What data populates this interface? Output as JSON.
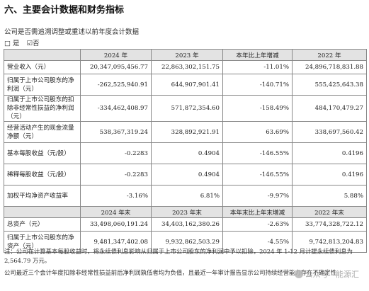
{
  "section_title": "六、主要会计数据和财务指标",
  "subtitle": "公司是否需追溯调整或重述以前年度会计数据",
  "choice": {
    "yes": "是",
    "no": "否",
    "box_empty": "□",
    "box_checked": "☑"
  },
  "header_top": [
    "",
    "2024 年",
    "2023 年",
    "本年比上年增减",
    "2022 年"
  ],
  "rows_top": [
    {
      "label": "营业收入（元）",
      "v2024": "20,347,095,456.77",
      "v2023": "22,863,302,151.75",
      "change": "-11.01%",
      "v2022": "24,896,718,831.88",
      "tall": false
    },
    {
      "label": "归属于上市公司股东的净利润（元）",
      "v2024": "-262,525,940.91",
      "v2023": "644,907,901.41",
      "change": "-140.71%",
      "v2022": "555,425,643.38",
      "tall": true
    },
    {
      "label": "归属于上市公司股东的扣除非经常性损益的净利润（元）",
      "v2024": "-334,462,408.97",
      "v2023": "571,872,354.60",
      "change": "-158.49%",
      "v2022": "484,170,479.27",
      "tall": true
    },
    {
      "label": "经营活动产生的现金流量净额（元）",
      "v2024": "538,367,319.24",
      "v2023": "328,892,921.91",
      "change": "63.69%",
      "v2022": "338,697,560.42",
      "tall": true
    },
    {
      "label": "基本每股收益（元/股）",
      "v2024": "-0.2283",
      "v2023": "0.4904",
      "change": "-146.55%",
      "v2022": "0.4196",
      "tall": true
    },
    {
      "label": "稀释每股收益（元/股）",
      "v2024": "-0.2283",
      "v2023": "0.4904",
      "change": "-146.55%",
      "v2022": "0.4196",
      "tall": true
    },
    {
      "label": "加权平均净资产收益率",
      "v2024": "-3.16%",
      "v2023": "6.81%",
      "change": "-9.97%",
      "v2022": "5.88%",
      "tall": true
    }
  ],
  "header_bottom": [
    "",
    "2024 年末",
    "2023 年末",
    "本年末比上年末增减",
    "2022 年末"
  ],
  "rows_bottom": [
    {
      "label": "总资产（元）",
      "v2024": "33,498,060,191.24",
      "v2023": "34,403,162,380.26",
      "change": "-2.63%",
      "v2022": "33,774,328,722.12",
      "tall": false
    },
    {
      "label": "归属于上市公司股东的净资产（元）",
      "v2024": "9,481,347,402.08",
      "v2023": "9,932,862,503.29",
      "change": "-4.55%",
      "v2022": "9,742,813,204.83",
      "tall": true
    }
  ],
  "note1": "注：公司在计算基本每股收益时，将永续债利息影响从归属于上市公司股东的净利润中予以扣除，2024 年 1-12 月计提永续债利息为 2,564.79 万元。",
  "note2": "公司最近三个会计年度扣除非经常性损益前后净利润孰低者均为负值，且最近一年审计报告显示公司持续经营能力存在不确定性",
  "watermark": "公众号 · 能源汇"
}
